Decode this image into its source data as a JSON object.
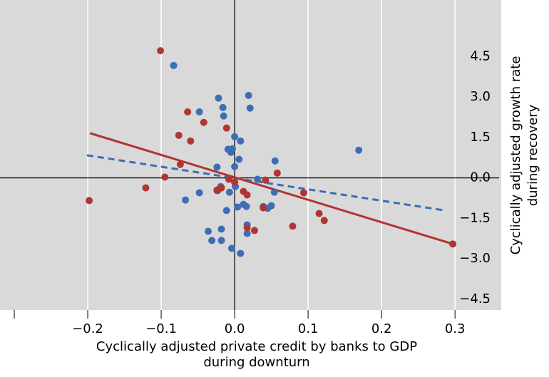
{
  "chart_data": {
    "type": "scatter",
    "xlabel": [
      "Cyclically adjusted private credit by banks to GDP",
      "during downturn"
    ],
    "ylabel": [
      "Cyclically adjusted growth rate",
      "during recovery"
    ],
    "xlim": [
      -0.3,
      0.36
    ],
    "ylim": [
      -4.9,
      6.6
    ],
    "xticks": [
      {
        "value": -0.2,
        "label": "−0.2"
      },
      {
        "value": -0.1,
        "label": "−0.1"
      },
      {
        "value": 0,
        "label": "0.0"
      },
      0.1,
      0.2,
      0.3
    ],
    "yticks": [
      {
        "value": -4.5,
        "label": "−4.5"
      },
      {
        "value": -3,
        "label": "−3.0"
      },
      {
        "value": -1.5,
        "label": "−1.5"
      },
      {
        "value": 0,
        "label": "0.0"
      },
      1.5,
      {
        "value": 3,
        "label": "3.0"
      },
      4.5
    ],
    "grid": "x",
    "background": "#d9d9d9",
    "series": [
      {
        "color": "#3d6db5",
        "x": [
          -0.083,
          -0.022,
          0.019,
          -0.016,
          -0.048,
          0.021,
          -0.015,
          0.0,
          0.008,
          -0.009,
          -0.003,
          -0.005,
          0.006,
          0.0,
          0.169,
          0.055,
          -0.024,
          0.031,
          -0.019,
          -0.023,
          0.001,
          -0.048,
          -0.007,
          -0.024,
          -0.067,
          0.054,
          0.012,
          0.016,
          0.039,
          0.05,
          0.045,
          -0.011,
          0.004,
          0.017,
          0.017,
          -0.018,
          -0.036,
          -0.031,
          -0.018,
          -0.004,
          0.008
        ],
        "y": [
          4.17,
          2.96,
          3.06,
          2.61,
          2.45,
          2.59,
          2.3,
          1.53,
          1.37,
          1.06,
          1.08,
          0.95,
          0.69,
          0.42,
          1.03,
          0.63,
          0.4,
          -0.05,
          -0.32,
          -0.47,
          -0.32,
          -0.55,
          -0.53,
          -0.47,
          -0.82,
          -0.53,
          -0.98,
          -1.06,
          -1.06,
          -1.03,
          -1.13,
          -1.21,
          -1.08,
          -1.74,
          -2.06,
          -1.9,
          -1.98,
          -2.32,
          -2.32,
          -2.61,
          -2.8
        ]
      },
      {
        "color": "#b03530",
        "x": [
          -0.101,
          -0.064,
          -0.042,
          -0.011,
          -0.076,
          -0.06,
          -0.074,
          -0.095,
          -0.121,
          -0.198,
          0.0,
          -0.018,
          -0.024,
          -0.008,
          0.012,
          0.017,
          0.042,
          0.058,
          0.094,
          0.039,
          0.122,
          0.115,
          0.079,
          0.027,
          0.017,
          0.297
        ],
        "y": [
          4.72,
          2.45,
          2.06,
          1.85,
          1.58,
          1.37,
          0.5,
          0.03,
          -0.37,
          -0.84,
          -0.16,
          -0.37,
          -0.45,
          -0.05,
          -0.5,
          -0.63,
          -0.08,
          0.18,
          -0.55,
          -1.11,
          -1.58,
          -1.32,
          -1.79,
          -1.95,
          -1.85,
          -2.45
        ]
      }
    ],
    "fits": [
      {
        "color": "#3d6db5",
        "dashed": true,
        "x": [
          -0.201,
          0.287
        ],
        "y": [
          0.84,
          -1.21
        ]
      },
      {
        "color": "#b03530",
        "dashed": false,
        "x": [
          -0.197,
          0.297
        ],
        "y": [
          1.66,
          -2.45
        ]
      }
    ]
  }
}
